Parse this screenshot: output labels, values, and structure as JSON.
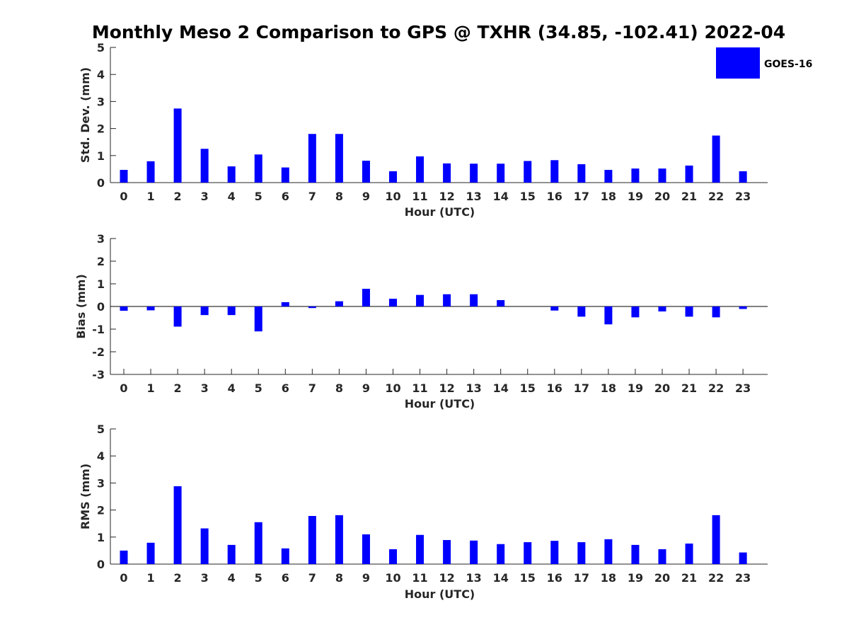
{
  "chart_data": {
    "title": "Monthly Meso 2 Comparison to GPS @ TXHR (34.85, -102.41) 2022-04",
    "bar_color": "#0000ff",
    "legend": {
      "label": "GOES-16",
      "placement": "top-right"
    },
    "panels": [
      {
        "type": "bar",
        "ylabel": "Std. Dev. (mm)",
        "xlabel": "Hour (UTC)",
        "ylim": [
          0,
          5
        ],
        "yticks": [
          0,
          1,
          2,
          3,
          4,
          5
        ],
        "categories": [
          "0",
          "1",
          "2",
          "3",
          "4",
          "5",
          "6",
          "7",
          "8",
          "9",
          "10",
          "11",
          "12",
          "13",
          "14",
          "15",
          "16",
          "17",
          "18",
          "19",
          "20",
          "21",
          "22",
          "23"
        ],
        "values": [
          0.47,
          0.79,
          2.74,
          1.25,
          0.6,
          1.04,
          0.56,
          1.8,
          1.8,
          0.81,
          0.42,
          0.97,
          0.71,
          0.7,
          0.7,
          0.8,
          0.83,
          0.68,
          0.47,
          0.52,
          0.52,
          0.63,
          1.74,
          0.42
        ]
      },
      {
        "type": "bar",
        "ylabel": "Bias (mm)",
        "xlabel": "Hour (UTC)",
        "ylim": [
          -3,
          3
        ],
        "yticks": [
          -3,
          -2,
          -1,
          0,
          1,
          2,
          3
        ],
        "zero_line": true,
        "categories": [
          "0",
          "1",
          "2",
          "3",
          "4",
          "5",
          "6",
          "7",
          "8",
          "9",
          "10",
          "11",
          "12",
          "13",
          "14",
          "15",
          "16",
          "17",
          "18",
          "19",
          "20",
          "21",
          "22",
          "23"
        ],
        "values": [
          -0.19,
          -0.17,
          -0.89,
          -0.38,
          -0.38,
          -1.1,
          0.19,
          -0.07,
          0.23,
          0.78,
          0.34,
          0.51,
          0.54,
          0.54,
          0.28,
          0.0,
          -0.18,
          -0.45,
          -0.79,
          -0.48,
          -0.22,
          -0.45,
          -0.48,
          -0.11
        ]
      },
      {
        "type": "bar",
        "ylabel": "RMS (mm)",
        "xlabel": "Hour (UTC)",
        "ylim": [
          0,
          5
        ],
        "yticks": [
          0,
          1,
          2,
          3,
          4,
          5
        ],
        "categories": [
          "0",
          "1",
          "2",
          "3",
          "4",
          "5",
          "6",
          "7",
          "8",
          "9",
          "10",
          "11",
          "12",
          "13",
          "14",
          "15",
          "16",
          "17",
          "18",
          "19",
          "20",
          "21",
          "22",
          "23"
        ],
        "values": [
          0.5,
          0.79,
          2.88,
          1.32,
          0.71,
          1.55,
          0.58,
          1.78,
          1.81,
          1.1,
          0.55,
          1.08,
          0.89,
          0.87,
          0.74,
          0.81,
          0.86,
          0.81,
          0.92,
          0.71,
          0.55,
          0.76,
          1.81,
          0.43
        ]
      }
    ]
  }
}
